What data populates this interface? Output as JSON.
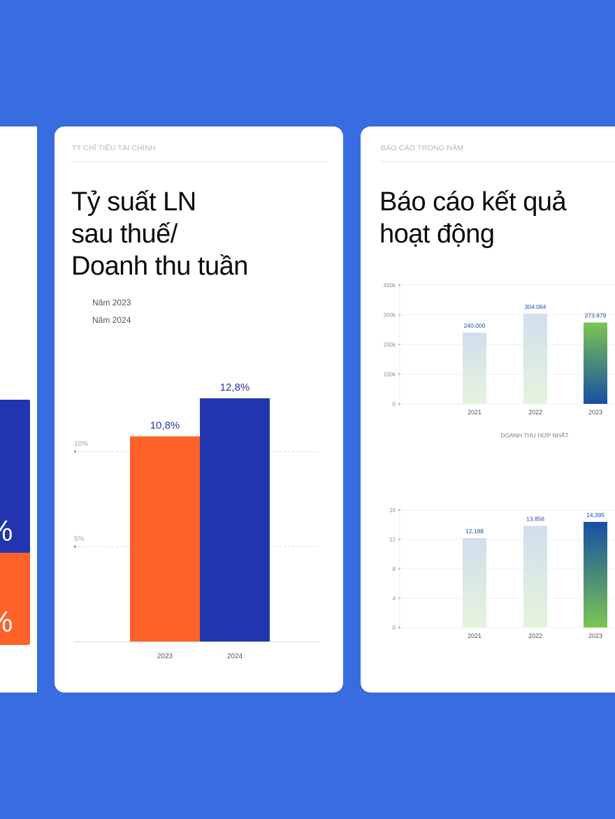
{
  "colors": {
    "page_bg": "#386ce0",
    "card_bg": "#ffffff",
    "orange": "#ff6229",
    "navy": "#2235ae",
    "label_blue": "#1f4ba6",
    "gradient_top_green": "#7cc552",
    "gradient_bottom_blue": "#174fa3"
  },
  "left_card": {
    "partial_percent_glyph_1": "%",
    "partial_percent_glyph_2": "%"
  },
  "middle_card": {
    "eyebrow": "TT CHỈ TIÊU TÀI CHÍNH",
    "title_lines": [
      "Tỷ suất LN",
      "sau thuế/",
      "Doanh thu tuần"
    ],
    "legend": [
      "Năm 2023",
      "Năm 2024"
    ]
  },
  "right_card": {
    "eyebrow": "BÁO CÁO TRONG NĂM",
    "title_lines": [
      "Báo cáo kết quả",
      "hoạt động"
    ],
    "chart1_caption": "DOANH THU HỢP NHẤT"
  },
  "chart_data": [
    {
      "type": "bar",
      "categories": [
        "2023",
        "2024"
      ],
      "values": [
        10.8,
        12.8
      ],
      "value_labels": [
        "10,8%",
        "12,8%"
      ],
      "bar_colors": [
        "#ff6229",
        "#2235ae"
      ],
      "ylim": [
        0,
        12.8
      ],
      "reference_lines": [
        {
          "value": 10,
          "label": "10%"
        },
        {
          "value": 5,
          "label": "5%"
        }
      ],
      "grid": false
    },
    {
      "type": "bar",
      "title": "DOANH THU HỢP NHẤT",
      "categories": [
        "2021",
        "2022",
        "2023"
      ],
      "values": [
        240000,
        304064,
        273979
      ],
      "value_labels": [
        "240.000",
        "304.064",
        "273.979"
      ],
      "yticks": [
        0,
        100000,
        200000,
        300000,
        400000
      ],
      "ytick_labels": [
        "0",
        "100k",
        "200k",
        "300k",
        "400k"
      ],
      "ylim": [
        0,
        400000
      ],
      "grid": true
    },
    {
      "type": "bar",
      "categories": [
        "2021",
        "2022",
        "2023"
      ],
      "values": [
        12.188,
        13.856,
        14.395
      ],
      "value_labels": [
        "12,188",
        "13.856",
        "14,395"
      ],
      "yticks": [
        0,
        4,
        8,
        12,
        16
      ],
      "ytick_labels": [
        "0",
        "4",
        "8",
        "12",
        "16"
      ],
      "ylim": [
        0,
        16
      ],
      "grid": true
    }
  ]
}
